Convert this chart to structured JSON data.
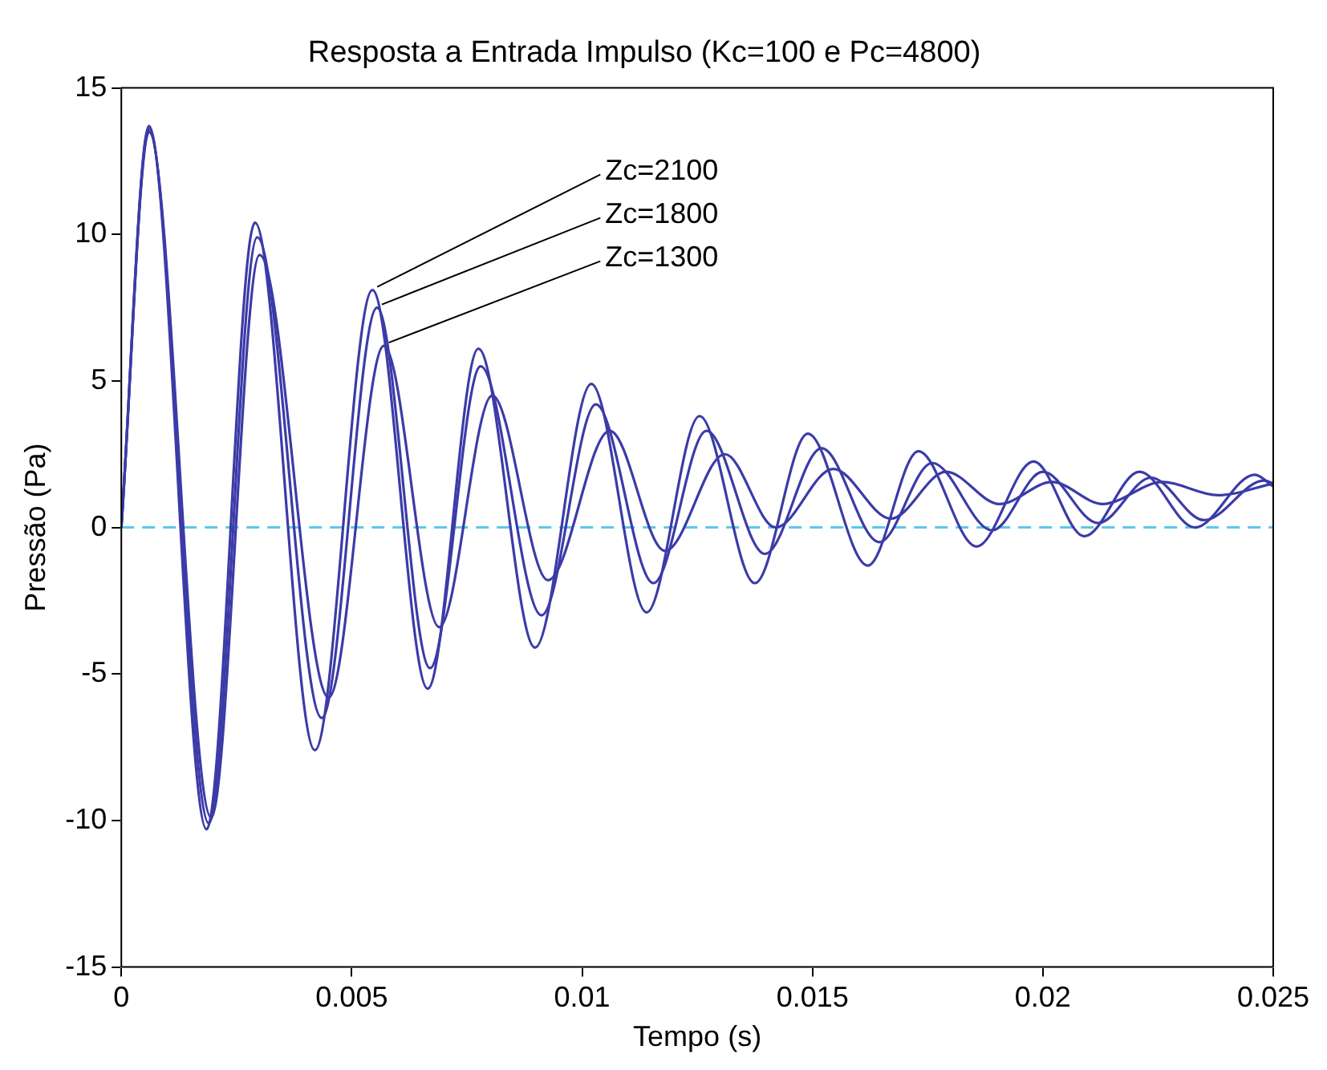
{
  "chart_data": {
    "type": "line",
    "title": "Resposta a Entrada Impulso (Kc=100 e Pc=4800)",
    "xlabel": "Tempo (s)",
    "ylabel": "Pressão (Pa)",
    "xlim": [
      0,
      0.025
    ],
    "xticks": [
      0,
      0.005,
      0.01,
      0.015,
      0.02,
      0.025
    ],
    "ylim": [
      -15,
      15
    ],
    "yticks": [
      -15,
      -10,
      -5,
      0,
      5,
      10,
      15
    ],
    "grid": false,
    "legend": false,
    "marker": "none",
    "line_style": "solid",
    "series": [
      {
        "color": "#3b3ba8",
        "x": [
          0,
          0.0006,
          0.00185,
          0.0029,
          0.0042,
          0.00545,
          0.00665,
          0.00775,
          0.00898,
          0.0102,
          0.0114,
          0.01255,
          0.01375,
          0.0149,
          0.0162,
          0.0173,
          0.01856,
          0.0198,
          0.0209,
          0.0221,
          0.0233,
          0.0246,
          0.025
        ],
        "values": [
          0,
          13.7,
          -10.3,
          10.4,
          -7.6,
          8.1,
          -5.5,
          6.1,
          -4.1,
          4.9,
          -2.9,
          3.8,
          -1.9,
          3.2,
          -1.3,
          2.6,
          -0.65,
          2.25,
          -0.3,
          1.9,
          0,
          1.8,
          1.4
        ]
      },
      {
        "color": "#3b3ba8",
        "x": [
          0,
          0.0006,
          0.0019,
          0.00295,
          0.00435,
          0.00555,
          0.0067,
          0.0078,
          0.00912,
          0.0103,
          0.01155,
          0.0127,
          0.01397,
          0.0152,
          0.01645,
          0.0176,
          0.0189,
          0.02,
          0.0212,
          0.02235,
          0.0235,
          0.0248,
          0.025
        ],
        "values": [
          0,
          13.6,
          -10.1,
          9.9,
          -6.5,
          7.5,
          -4.8,
          5.5,
          -3.0,
          4.2,
          -1.9,
          3.3,
          -0.9,
          2.7,
          -0.5,
          2.2,
          -0.1,
          1.9,
          0.15,
          1.7,
          0.25,
          1.6,
          1.5
        ]
      },
      {
        "color": "#3b3ba8",
        "x": [
          0,
          0.0006,
          0.00195,
          0.003,
          0.0045,
          0.0057,
          0.0069,
          0.00805,
          0.00926,
          0.0106,
          0.0118,
          0.0131,
          0.0142,
          0.01545,
          0.0167,
          0.0179,
          0.01906,
          0.0202,
          0.0213,
          0.0226,
          0.0238,
          0.025
        ],
        "values": [
          0,
          13.5,
          -9.9,
          9.3,
          -5.8,
          6.2,
          -3.4,
          4.5,
          -1.8,
          3.3,
          -0.8,
          2.5,
          0,
          2.0,
          0.3,
          1.9,
          0.8,
          1.55,
          0.8,
          1.55,
          1.1,
          1.5
        ]
      }
    ],
    "ref_lines": [
      {
        "axis": "y",
        "value": 0,
        "color": "#5ec8e8",
        "line_style": "dashed"
      }
    ],
    "annotations": [
      {
        "text": "Zc=2100",
        "x": 0.00545,
        "y": 8.1
      },
      {
        "text": "Zc=1800",
        "x": 0.00555,
        "y": 7.5
      },
      {
        "text": "Zc=1300",
        "x": 0.0057,
        "y": 6.2
      }
    ]
  }
}
